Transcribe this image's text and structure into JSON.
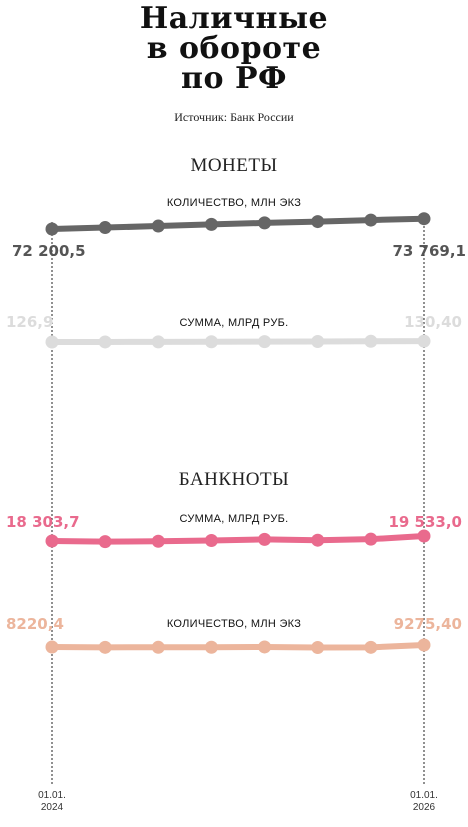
{
  "title_lines": [
    "Наличные",
    "в обороте",
    "по РФ"
  ],
  "source": "Источник: Банк России",
  "sections": {
    "coins": "МОНЕТЫ",
    "banknotes": "БАНКНОТЫ"
  },
  "x_labels": {
    "start": [
      "01.01.",
      "2024"
    ],
    "end": [
      "01.01.",
      "2026"
    ]
  },
  "colors": {
    "coins_count": "#666666",
    "coins_sum": "#dcdcdc",
    "bank_sum": "#e96a8d",
    "bank_count": "#ecb59c"
  },
  "chart_data": [
    {
      "type": "line",
      "title": "КОЛИЧЕСТВО, МЛН ЭКЗ",
      "group": "МОНЕТЫ",
      "x": [
        "01.01.2024",
        "",
        "",
        "",
        "",
        "",
        "",
        "01.01.2026"
      ],
      "values": [
        72200.5,
        72420,
        72650,
        72900,
        73130,
        73330,
        73560,
        73769.1
      ],
      "start_label": "72 200,5",
      "end_label": "73 769,1",
      "color": "#666666"
    },
    {
      "type": "line",
      "title": "СУММА, МЛРД РУБ.",
      "group": "МОНЕТЫ",
      "x": [
        "01.01.2024",
        "",
        "",
        "",
        "",
        "",
        "",
        "01.01.2026"
      ],
      "values": [
        126.9,
        127.1,
        127.5,
        127.9,
        128.4,
        129.0,
        129.7,
        130.4
      ],
      "start_label": "126,9",
      "end_label": "130,40",
      "color": "#dcdcdc"
    },
    {
      "type": "line",
      "title": "СУММА, МЛРД РУБ.",
      "group": "БАНКНОТЫ",
      "x": [
        "01.01.2024",
        "",
        "",
        "",
        "",
        "",
        "",
        "01.01.2026"
      ],
      "values": [
        18303.7,
        18150,
        18250,
        18420,
        18700,
        18500,
        18750,
        19533.0
      ],
      "start_label": "18 303,7",
      "end_label": "19 533,0",
      "color": "#e96a8d"
    },
    {
      "type": "line",
      "title": "КОЛИЧЕСТВО, МЛН ЭКЗ",
      "group": "БАНКНОТЫ",
      "x": [
        "01.01.2024",
        "",
        "",
        "",
        "",
        "",
        "",
        "01.01.2026"
      ],
      "values": [
        8220.4,
        8050,
        8070,
        8100,
        8240,
        7970,
        8050,
        9275.4
      ],
      "start_label": "8220,4",
      "end_label": "9275,40",
      "color": "#ecb59c"
    }
  ]
}
